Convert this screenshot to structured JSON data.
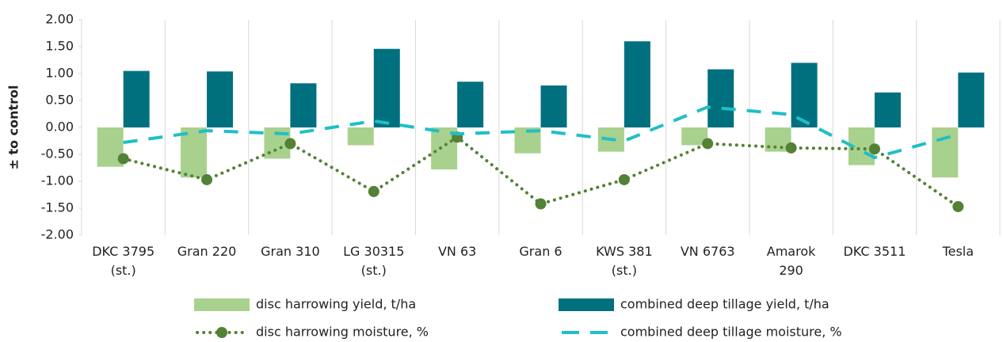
{
  "chart_data": {
    "type": "bar",
    "y_label": "± to control",
    "categories": [
      "DKC 3795\n(st.)",
      "Gran 220",
      "Gran 310",
      "LG 30315\n(st.)",
      "VN 63",
      "Gran 6",
      "KWS 381\n(st.)",
      "VN 6763",
      "Amarok\n290",
      "DKC 3511",
      "Tesla"
    ],
    "series": [
      {
        "name": "disc harrowing yield, t/ha",
        "type": "bar",
        "color": "#a9d18e",
        "values": [
          -0.73,
          -0.93,
          -0.58,
          -0.33,
          -0.78,
          -0.48,
          -0.45,
          -0.33,
          -0.45,
          -0.7,
          -0.93
        ]
      },
      {
        "name": "combined deep tillage yield, t/ha",
        "type": "bar",
        "color": "#00707f",
        "values": [
          1.05,
          1.04,
          0.82,
          1.46,
          0.85,
          0.78,
          1.6,
          1.08,
          1.2,
          0.65,
          1.02
        ]
      },
      {
        "name": "disc harrowing moisture, %",
        "type": "line",
        "style": "dotted",
        "color": "#538135",
        "values": [
          -0.58,
          -0.97,
          -0.3,
          -1.19,
          -0.18,
          -1.42,
          -0.97,
          -0.3,
          -0.38,
          -0.4,
          -1.47
        ]
      },
      {
        "name": "combined deep tillage moisture, %",
        "type": "line",
        "style": "dashed",
        "color": "#1fbfc7",
        "values": [
          -0.28,
          -0.06,
          -0.12,
          0.12,
          -0.12,
          -0.06,
          -0.25,
          0.38,
          0.24,
          -0.56,
          -0.13
        ]
      }
    ],
    "ylim": [
      -2,
      2
    ],
    "yticks": [
      {
        "value": 2,
        "label": "2.00"
      },
      {
        "value": 1.5,
        "label": "1.50"
      },
      {
        "value": 1,
        "label": "1.00"
      },
      {
        "value": 0.5,
        "label": "0.50"
      },
      {
        "value": 0,
        "label": "0.00"
      },
      {
        "value": -0.5,
        "label": "-0.50"
      },
      {
        "value": -1,
        "label": "-1.00"
      },
      {
        "value": -1.5,
        "label": "-1.50"
      },
      {
        "value": -2,
        "label": "-2.00"
      }
    ],
    "grid": true,
    "legend": "bottom"
  }
}
